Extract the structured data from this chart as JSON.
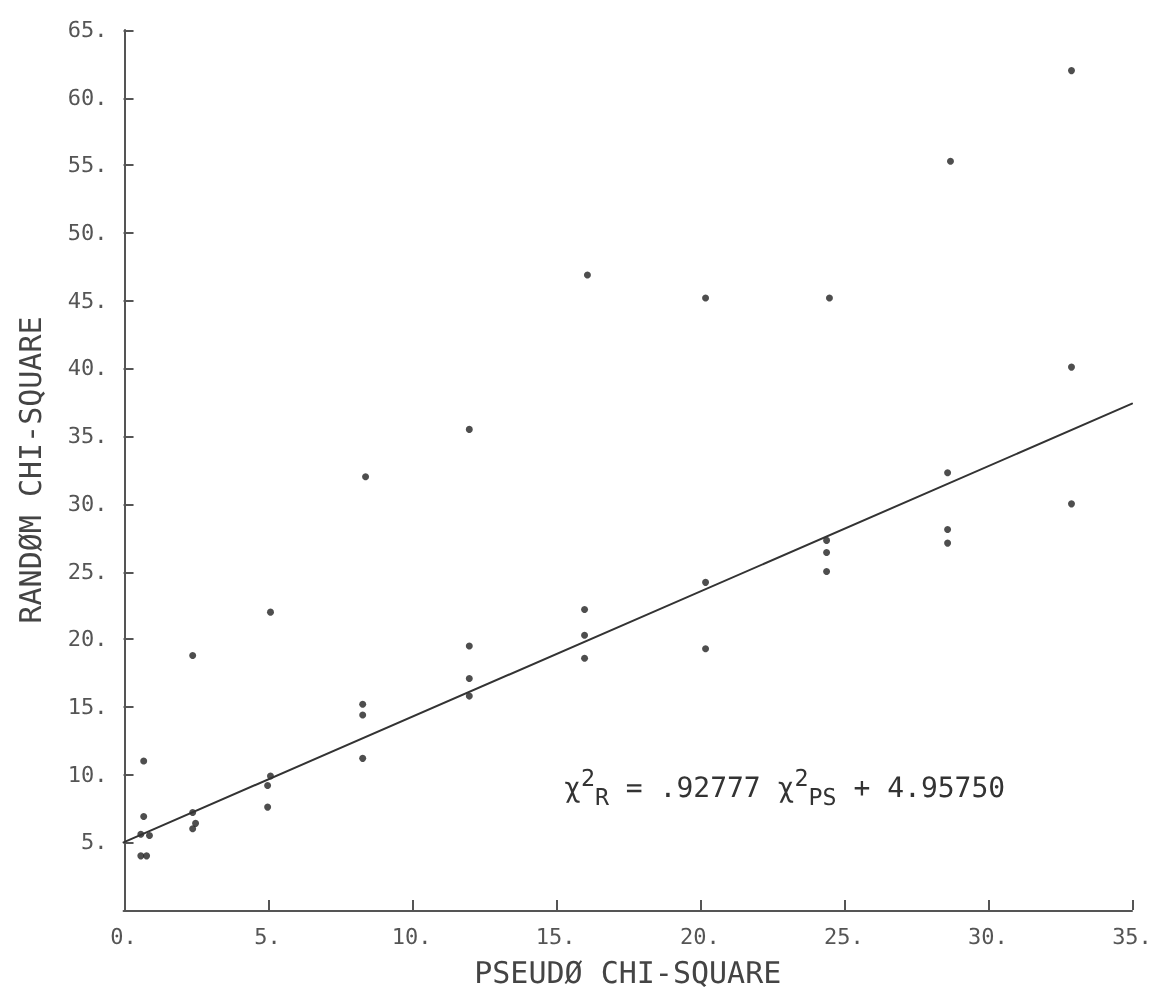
{
  "chart_data": {
    "type": "scatter",
    "xlabel": "PSEUDØ CHI-SQUARE",
    "ylabel": "RANDØM CHI-SQUARE",
    "annotations": [
      "χ$^{2}$$_{R}$ = .92777 χ$^{2}$$_{PS}$ + 4.95750"
    ],
    "xlim": [
      0,
      35
    ],
    "ylim": [
      0,
      65
    ],
    "xticks": [
      {
        "value": 0,
        "label": "0."
      },
      {
        "value": 5,
        "label": "5."
      },
      {
        "value": 10,
        "label": "10."
      },
      {
        "value": 15,
        "label": "15."
      },
      {
        "value": 20,
        "label": "20."
      },
      {
        "value": 25,
        "label": "25."
      },
      {
        "value": 30,
        "label": "30."
      },
      {
        "value": 35,
        "label": "35."
      }
    ],
    "yticks": [
      {
        "value": 5,
        "label": "5."
      },
      {
        "value": 10,
        "label": "10."
      },
      {
        "value": 15,
        "label": "15."
      },
      {
        "value": 20,
        "label": "20."
      },
      {
        "value": 25,
        "label": "25."
      },
      {
        "value": 30,
        "label": "30."
      },
      {
        "value": 35,
        "label": "35."
      },
      {
        "value": 40,
        "label": "40."
      },
      {
        "value": 45,
        "label": "45."
      },
      {
        "value": 50,
        "label": "50."
      },
      {
        "value": 55,
        "label": "55."
      },
      {
        "value": 60,
        "label": "60."
      },
      {
        "value": 65,
        "label": "65."
      }
    ],
    "grid": false,
    "series": [
      {
        "color": "#222222",
        "marker": "circle",
        "x": [
          0.7,
          0.7,
          0.6,
          0.9,
          0.6,
          0.8,
          2.4,
          2.4,
          2.5,
          2.4,
          5.1,
          5.1,
          5.0,
          5.0,
          8.3,
          8.3,
          8.3,
          8.4,
          12.0,
          12.0,
          12.0,
          12.0,
          16.0,
          16.0,
          16.0,
          16.1,
          20.2,
          20.2,
          20.2,
          24.4,
          24.4,
          24.4,
          24.5,
          28.6,
          28.6,
          28.6,
          28.7,
          32.9,
          32.9,
          32.9
        ],
        "values": [
          11.0,
          6.9,
          5.6,
          5.5,
          4.0,
          4.0,
          18.8,
          7.2,
          6.4,
          6.0,
          22.0,
          9.9,
          9.2,
          7.6,
          15.2,
          14.4,
          11.2,
          32.0,
          35.5,
          19.5,
          17.1,
          15.8,
          22.2,
          20.3,
          18.6,
          46.9,
          45.2,
          24.2,
          19.3,
          27.3,
          26.4,
          25.0,
          45.2,
          28.1,
          27.1,
          32.3,
          55.3,
          62.0,
          40.1,
          30.0
        ]
      },
      {
        "type": "line",
        "color": "#333333",
        "marker": "none",
        "line_style": "solid",
        "x": [
          0,
          35
        ],
        "values": [
          5.0,
          37.4
        ]
      }
    ]
  }
}
